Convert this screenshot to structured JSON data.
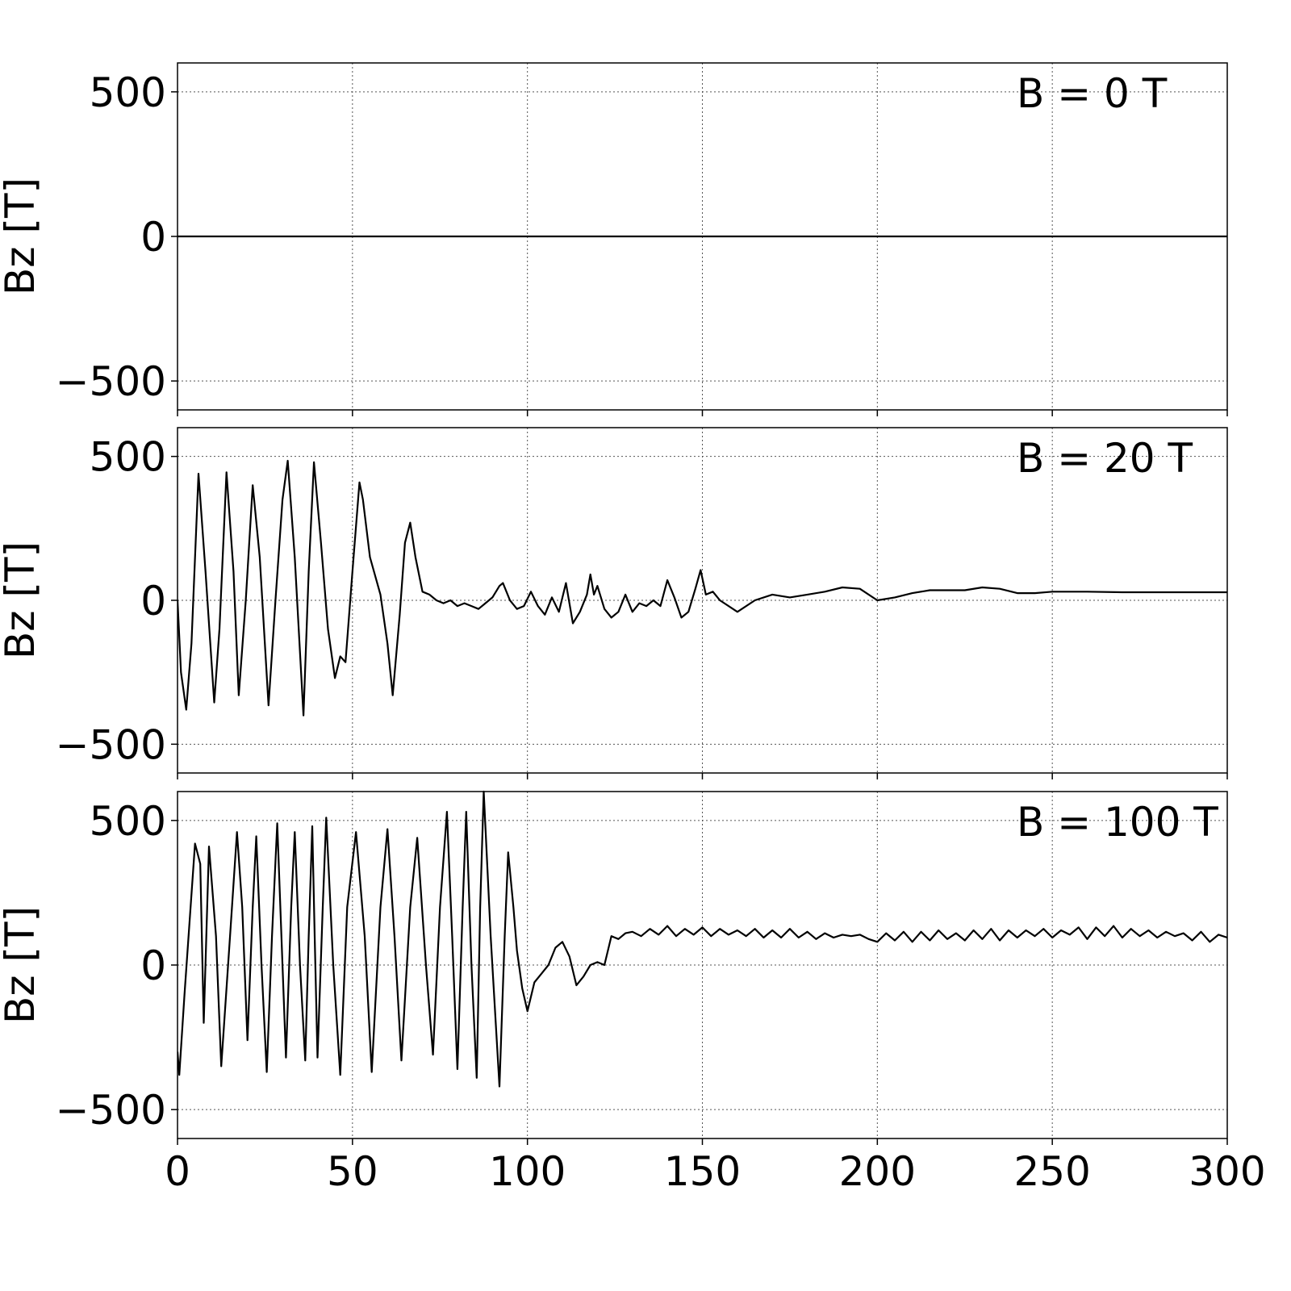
{
  "chart_data": [
    {
      "type": "line",
      "annotation": "B = 0 T",
      "ylabel": "Bz [T]",
      "color": "#000000",
      "x": [
        0,
        300
      ],
      "values": [
        0,
        0
      ],
      "xlim": [
        0,
        300
      ],
      "xticks": [
        0,
        50,
        100,
        150,
        200,
        250,
        300
      ],
      "ylim": [
        -600,
        600
      ],
      "yticks": [
        {
          "value": -500,
          "label": "−500"
        },
        0,
        500
      ],
      "grid": true
    },
    {
      "type": "line",
      "annotation": "B = 20 T",
      "ylabel": "Bz [T]",
      "color": "#000000",
      "x": [
        0,
        1,
        2.5,
        4,
        6,
        8,
        10.5,
        12,
        14,
        16,
        17.5,
        19.5,
        21.5,
        23.5,
        26,
        28,
        30,
        31.5,
        33.5,
        36,
        37.5,
        39,
        41,
        43,
        45,
        46.5,
        48,
        50,
        52,
        53,
        55,
        58,
        60,
        61.5,
        63.5,
        65,
        66.5,
        68,
        70,
        72,
        74,
        76,
        78,
        80,
        82,
        84,
        86,
        88,
        90,
        92,
        93,
        95,
        97,
        99,
        101,
        103,
        105,
        107,
        109,
        111,
        113,
        115,
        117,
        118,
        119,
        120,
        122,
        124,
        126,
        128,
        130,
        132,
        134,
        136,
        138,
        140,
        142,
        144,
        146,
        148,
        149.5,
        151,
        153,
        155,
        160,
        165,
        170,
        175,
        180,
        185,
        190,
        195,
        200,
        205,
        210,
        215,
        220,
        225,
        230,
        235,
        240,
        245,
        250,
        260,
        270,
        280,
        290,
        300
      ],
      "values": [
        0,
        -250,
        -380,
        -150,
        440,
        100,
        -355,
        -100,
        445,
        100,
        -330,
        0,
        400,
        150,
        -365,
        0,
        350,
        485,
        150,
        -400,
        100,
        480,
        200,
        -100,
        -270,
        -195,
        -215,
        100,
        410,
        350,
        150,
        20,
        -150,
        -330,
        -50,
        200,
        270,
        150,
        30,
        20,
        0,
        -10,
        0,
        -20,
        -10,
        -20,
        -30,
        -10,
        10,
        50,
        60,
        0,
        -30,
        -20,
        30,
        -20,
        -50,
        10,
        -40,
        60,
        -80,
        -40,
        20,
        90,
        20,
        50,
        -30,
        -60,
        -40,
        20,
        -40,
        -10,
        -20,
        0,
        -20,
        70,
        10,
        -60,
        -40,
        40,
        105,
        20,
        30,
        0,
        -40,
        0,
        20,
        10,
        20,
        30,
        45,
        40,
        0,
        10,
        25,
        35,
        35,
        35,
        45,
        40,
        25,
        25,
        30,
        30,
        28,
        28,
        28,
        28
      ],
      "xlim": [
        0,
        300
      ],
      "xticks": [
        0,
        50,
        100,
        150,
        200,
        250,
        300
      ],
      "ylim": [
        -600,
        600
      ],
      "yticks": [
        {
          "value": -500,
          "label": "−500"
        },
        0,
        500
      ],
      "grid": true
    },
    {
      "type": "line",
      "annotation": "B = 100 T",
      "ylabel": "Bz [T]",
      "color": "#000000",
      "x": [
        0,
        0.5,
        2,
        5,
        6.5,
        7.5,
        9,
        11,
        12.5,
        15,
        17,
        18.5,
        20,
        21.5,
        22.5,
        24,
        25.5,
        27,
        28.5,
        30,
        31,
        32.5,
        33.5,
        35,
        36.5,
        37.5,
        38.5,
        39.2,
        40,
        41.5,
        42.5,
        44.5,
        46.5,
        48.5,
        51,
        53.5,
        55.5,
        58,
        60,
        62,
        64,
        66.5,
        68.5,
        71,
        73,
        75,
        77,
        78.5,
        80,
        81.5,
        82.5,
        84,
        85.5,
        86.5,
        87.5,
        89.5,
        92,
        93.5,
        94.5,
        96,
        97,
        98.5,
        100,
        102,
        104,
        106,
        108,
        110,
        112,
        114,
        116,
        118,
        120,
        122,
        124,
        126,
        128,
        130,
        132.5,
        135,
        137.5,
        140,
        142.5,
        145,
        147.5,
        150,
        152.5,
        155,
        157.5,
        160,
        162.5,
        165,
        167.5,
        170,
        172.5,
        175,
        177.5,
        180,
        182.5,
        185,
        187.5,
        190,
        192.5,
        195,
        197.5,
        200,
        202.5,
        205,
        207.5,
        210,
        212.5,
        215,
        217.5,
        220,
        222.5,
        225,
        227.5,
        230,
        232.5,
        235,
        237.5,
        240,
        242.5,
        245,
        247.5,
        250,
        252.5,
        255,
        257.5,
        260,
        262.5,
        265,
        267.5,
        270,
        272.5,
        275,
        277.5,
        280,
        282.5,
        285,
        287.5,
        290,
        292.5,
        295,
        297.5,
        300
      ],
      "values": [
        -300,
        -380,
        -100,
        420,
        350,
        -200,
        410,
        100,
        -350,
        100,
        460,
        200,
        -260,
        200,
        445,
        0,
        -370,
        100,
        490,
        0,
        -320,
        200,
        460,
        0,
        -330,
        100,
        480,
        100,
        -320,
        200,
        510,
        0,
        -380,
        200,
        460,
        100,
        -370,
        200,
        470,
        100,
        -330,
        200,
        440,
        0,
        -310,
        200,
        530,
        100,
        -360,
        200,
        530,
        0,
        -390,
        200,
        600,
        100,
        -420,
        100,
        390,
        200,
        50,
        -80,
        -160,
        -60,
        -30,
        0,
        60,
        80,
        30,
        -70,
        -40,
        0,
        10,
        0,
        100,
        90,
        110,
        115,
        100,
        125,
        105,
        135,
        100,
        125,
        105,
        130,
        100,
        125,
        105,
        120,
        100,
        125,
        95,
        120,
        95,
        125,
        95,
        115,
        90,
        110,
        95,
        105,
        100,
        105,
        90,
        80,
        110,
        85,
        115,
        80,
        115,
        85,
        120,
        90,
        110,
        85,
        120,
        90,
        125,
        85,
        120,
        95,
        120,
        100,
        125,
        95,
        120,
        105,
        130,
        90,
        130,
        100,
        135,
        95,
        125,
        100,
        120,
        95,
        115,
        100,
        110,
        85,
        115,
        80,
        105,
        95
      ],
      "xlim": [
        0,
        300
      ],
      "xticks": [
        0,
        50,
        100,
        150,
        200,
        250,
        300
      ],
      "ylim": [
        -600,
        600
      ],
      "yticks": [
        {
          "value": -500,
          "label": "−500"
        },
        0,
        500
      ],
      "grid": true
    }
  ]
}
